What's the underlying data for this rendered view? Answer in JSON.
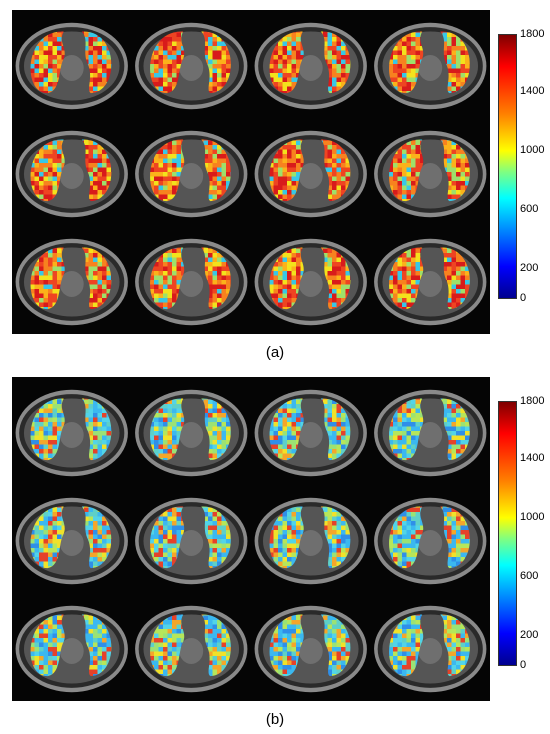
{
  "panels": [
    {
      "caption": "(a)",
      "colorbar": {
        "ticks": [
          "1800",
          "1400",
          "1000",
          "600",
          "200",
          "0"
        ],
        "colormap": "jet"
      },
      "grid": {
        "rows": 3,
        "cols": 4
      },
      "palette_bias": "warm"
    },
    {
      "caption": "(b)",
      "colorbar": {
        "ticks": [
          "1800",
          "1400",
          "1000",
          "600",
          "200",
          "0"
        ],
        "colormap": "jet"
      },
      "grid": {
        "rows": 3,
        "cols": 4
      },
      "palette_bias": "cool"
    }
  ],
  "colors": {
    "background": "#ffffff",
    "mosaic_background": "#050505"
  }
}
